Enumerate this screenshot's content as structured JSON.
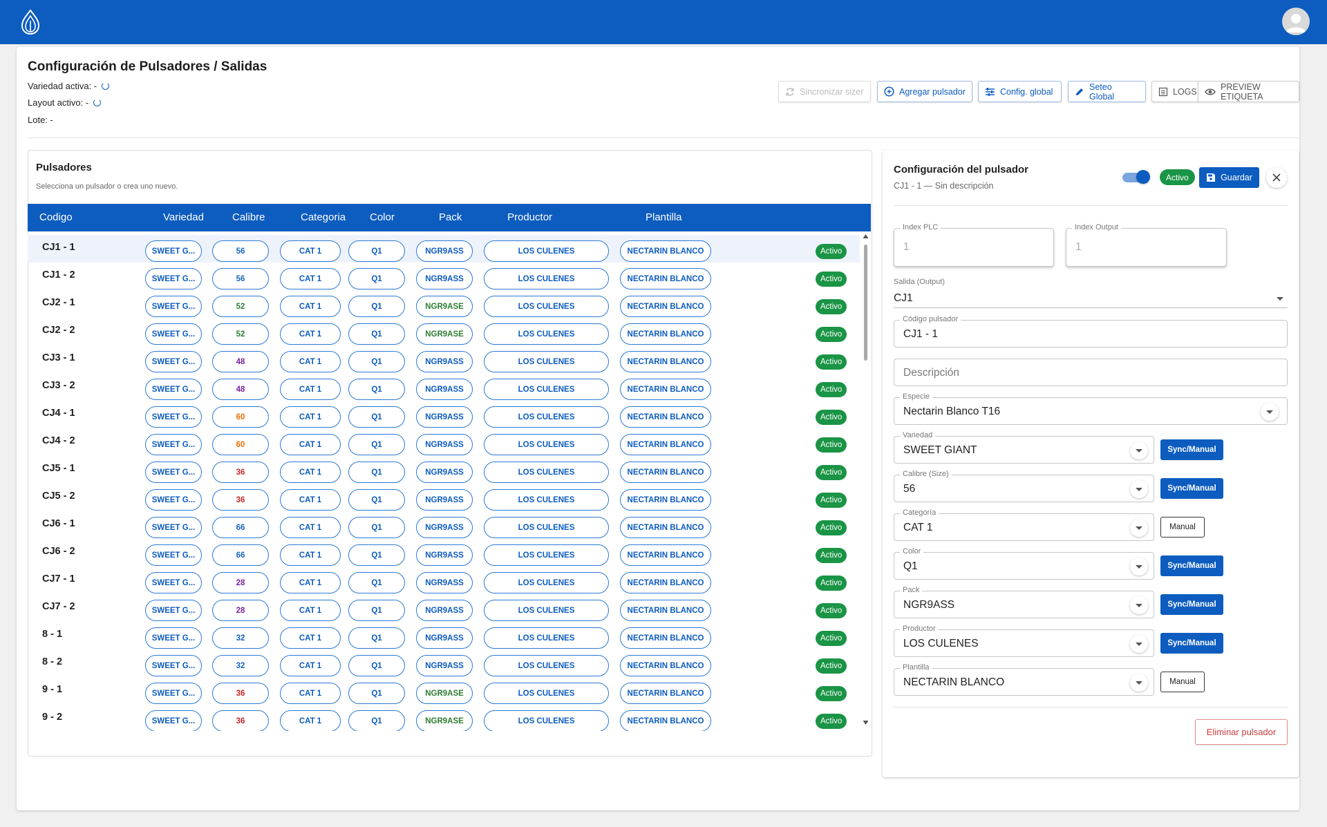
{
  "header": {
    "colors": {
      "bar": "#0d5cbf",
      "active": "#1a9445",
      "danger": "#c83c3c"
    }
  },
  "page": {
    "title": "Configuración de Pulsadores / Salidas",
    "variedad_label": "Variedad activa: -",
    "layout_label": "Layout activo: -",
    "lote_label": "Lote: -"
  },
  "toolbar": {
    "sync": "Sincronizar sizer",
    "add": "Agregar pulsador",
    "global_config": "Config. global",
    "seteo": "Seteo Global",
    "logs": "LOGS",
    "preview": "PREVIEW ETIQUETA"
  },
  "list": {
    "title": "Pulsadores",
    "subtitle": "Selecciona un pulsador o crea uno nuevo.",
    "columns": [
      "Codigo",
      "Variedad",
      "Calibre",
      "Categoria",
      "Color",
      "Pack",
      "Productor",
      "Plantilla"
    ],
    "rows": [
      {
        "code": "CJ1 - 1",
        "variedad": "SWEET G...",
        "calibre": "56",
        "categoria": "CAT 1",
        "color": "Q1",
        "pack": "NGR9ASS",
        "productor": "LOS CULENES",
        "plantilla": "NECTARIN BLANCO",
        "estado": "Activo"
      },
      {
        "code": "CJ1 - 2",
        "variedad": "SWEET G...",
        "calibre": "56",
        "categoria": "CAT 1",
        "color": "Q1",
        "pack": "NGR9ASS",
        "productor": "LOS CULENES",
        "plantilla": "NECTARIN BLANCO",
        "estado": "Activo"
      },
      {
        "code": "CJ2 - 1",
        "variedad": "SWEET G...",
        "calibre": "52",
        "categoria": "CAT 1",
        "color": "Q1",
        "pack": "NGR9ASE",
        "productor": "LOS CULENES",
        "plantilla": "NECTARIN BLANCO",
        "estado": "Activo"
      },
      {
        "code": "CJ2 - 2",
        "variedad": "SWEET G...",
        "calibre": "52",
        "categoria": "CAT 1",
        "color": "Q1",
        "pack": "NGR9ASE",
        "productor": "LOS CULENES",
        "plantilla": "NECTARIN BLANCO",
        "estado": "Activo"
      },
      {
        "code": "CJ3 - 1",
        "variedad": "SWEET G...",
        "calibre": "48",
        "categoria": "CAT 1",
        "color": "Q1",
        "pack": "NGR9ASS",
        "productor": "LOS CULENES",
        "plantilla": "NECTARIN BLANCO",
        "estado": "Activo"
      },
      {
        "code": "CJ3 - 2",
        "variedad": "SWEET G...",
        "calibre": "48",
        "categoria": "CAT 1",
        "color": "Q1",
        "pack": "NGR9ASS",
        "productor": "LOS CULENES",
        "plantilla": "NECTARIN BLANCO",
        "estado": "Activo"
      },
      {
        "code": "CJ4 - 1",
        "variedad": "SWEET G...",
        "calibre": "60",
        "categoria": "CAT 1",
        "color": "Q1",
        "pack": "NGR9ASS",
        "productor": "LOS CULENES",
        "plantilla": "NECTARIN BLANCO",
        "estado": "Activo"
      },
      {
        "code": "CJ4 - 2",
        "variedad": "SWEET G...",
        "calibre": "60",
        "categoria": "CAT 1",
        "color": "Q1",
        "pack": "NGR9ASS",
        "productor": "LOS CULENES",
        "plantilla": "NECTARIN BLANCO",
        "estado": "Activo"
      },
      {
        "code": "CJ5 - 1",
        "variedad": "SWEET G...",
        "calibre": "36",
        "categoria": "CAT 1",
        "color": "Q1",
        "pack": "NGR9ASS",
        "productor": "LOS CULENES",
        "plantilla": "NECTARIN BLANCO",
        "estado": "Activo"
      },
      {
        "code": "CJ5 - 2",
        "variedad": "SWEET G...",
        "calibre": "36",
        "categoria": "CAT 1",
        "color": "Q1",
        "pack": "NGR9ASS",
        "productor": "LOS CULENES",
        "plantilla": "NECTARIN BLANCO",
        "estado": "Activo"
      },
      {
        "code": "CJ6 - 1",
        "variedad": "SWEET G...",
        "calibre": "66",
        "categoria": "CAT 1",
        "color": "Q1",
        "pack": "NGR9ASS",
        "productor": "LOS CULENES",
        "plantilla": "NECTARIN BLANCO",
        "estado": "Activo"
      },
      {
        "code": "CJ6 - 2",
        "variedad": "SWEET G...",
        "calibre": "66",
        "categoria": "CAT 1",
        "color": "Q1",
        "pack": "NGR9ASS",
        "productor": "LOS CULENES",
        "plantilla": "NECTARIN BLANCO",
        "estado": "Activo"
      },
      {
        "code": "CJ7 - 1",
        "variedad": "SWEET G...",
        "calibre": "28",
        "categoria": "CAT 1",
        "color": "Q1",
        "pack": "NGR9ASS",
        "productor": "LOS CULENES",
        "plantilla": "NECTARIN BLANCO",
        "estado": "Activo"
      },
      {
        "code": "CJ7 - 2",
        "variedad": "SWEET G...",
        "calibre": "28",
        "categoria": "CAT 1",
        "color": "Q1",
        "pack": "NGR9ASS",
        "productor": "LOS CULENES",
        "plantilla": "NECTARIN BLANCO",
        "estado": "Activo"
      },
      {
        "code": "8 - 1",
        "variedad": "SWEET G...",
        "calibre": "32",
        "categoria": "CAT 1",
        "color": "Q1",
        "pack": "NGR9ASS",
        "productor": "LOS CULENES",
        "plantilla": "NECTARIN BLANCO",
        "estado": "Activo"
      },
      {
        "code": "8 - 2",
        "variedad": "SWEET G...",
        "calibre": "32",
        "categoria": "CAT 1",
        "color": "Q1",
        "pack": "NGR9ASS",
        "productor": "LOS CULENES",
        "plantilla": "NECTARIN BLANCO",
        "estado": "Activo"
      },
      {
        "code": "9 - 1",
        "variedad": "SWEET G...",
        "calibre": "36",
        "categoria": "CAT 1",
        "color": "Q1",
        "pack": "NGR9ASE",
        "productor": "LOS CULENES",
        "plantilla": "NECTARIN BLANCO",
        "estado": "Activo"
      },
      {
        "code": "9 - 2",
        "variedad": "SWEET G...",
        "calibre": "36",
        "categoria": "CAT 1",
        "color": "Q1",
        "pack": "NGR9ASE",
        "productor": "LOS CULENES",
        "plantilla": "NECTARIN BLANCO",
        "estado": "Activo"
      }
    ],
    "calibre_colors": {
      "56": "#1565c0",
      "52": "#2e7d32",
      "48": "#7b1fa2",
      "60": "#ef6c00",
      "36": "#c62828",
      "66": "#1565c0",
      "28": "#7b1fa2",
      "32": "#1565c0"
    },
    "pack_colors": {
      "NGR9ASS": "#0d5cbf",
      "NGR9ASE": "#2e7d32"
    }
  },
  "detail": {
    "title": "Configuración del pulsador",
    "subtitle": "CJ1 - 1 — Sin descripción",
    "active_badge": "Activo",
    "save": "Guardar",
    "index_plc_label": "Index PLC",
    "index_plc_value": "1",
    "index_output_label": "Index Output",
    "index_output_value": "1",
    "salida_label": "Salida (Output)",
    "salida_value": "CJ1",
    "codigo_label": "Código pulsador",
    "codigo_value": "CJ1 - 1",
    "descripcion_placeholder": "Descripción",
    "especie_label": "Especie",
    "especie_value": "Nectarin Blanco T16",
    "fields": [
      {
        "label": "Variedad",
        "value": "SWEET GIANT",
        "mode": "Sync/Manual"
      },
      {
        "label": "Calibre (Size)",
        "value": "56",
        "mode": "Sync/Manual"
      },
      {
        "label": "Categoría",
        "value": "CAT 1",
        "mode": "Manual"
      },
      {
        "label": "Color",
        "value": "Q1",
        "mode": "Sync/Manual"
      },
      {
        "label": "Pack",
        "value": "NGR9ASS",
        "mode": "Sync/Manual"
      },
      {
        "label": "Productor",
        "value": "LOS CULENES",
        "mode": "Sync/Manual"
      },
      {
        "label": "Plantilla",
        "value": "NECTARIN BLANCO",
        "mode": "Manual"
      }
    ],
    "delete": "Eliminar pulsador"
  }
}
